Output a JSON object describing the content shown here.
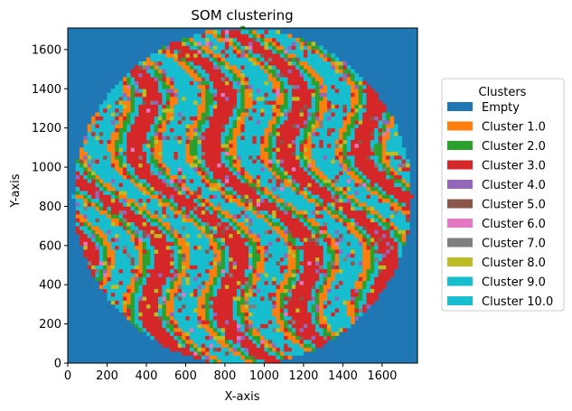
{
  "chart_data": {
    "type": "heatmap",
    "title": "SOM clustering",
    "xlabel": "X-axis",
    "ylabel": "Y-axis",
    "xlim": [
      0,
      1780
    ],
    "ylim": [
      0,
      1710
    ],
    "x_ticks": [
      0,
      200,
      400,
      600,
      800,
      1000,
      1200,
      1400,
      1600
    ],
    "y_ticks": [
      0,
      200,
      400,
      600,
      800,
      1000,
      1200,
      1400,
      1600
    ],
    "grid": false,
    "legend_placement": "right",
    "legend_title": "Clusters",
    "background_cluster": "Empty",
    "disk": {
      "center": [
        890,
        850
      ],
      "radius": 860
    },
    "series": [
      {
        "name": "Empty",
        "color": "#1f77b4"
      },
      {
        "name": "Cluster 1.0",
        "color": "#ff7f0e"
      },
      {
        "name": "Cluster 2.0",
        "color": "#2ca02c"
      },
      {
        "name": "Cluster 3.0",
        "color": "#d62728"
      },
      {
        "name": "Cluster 4.0",
        "color": "#9467bd"
      },
      {
        "name": "Cluster 5.0",
        "color": "#8c564b"
      },
      {
        "name": "Cluster 6.0",
        "color": "#e377c2"
      },
      {
        "name": "Cluster 7.0",
        "color": "#7f7f7f"
      },
      {
        "name": "Cluster 8.0",
        "color": "#bcbd22"
      },
      {
        "name": "Cluster 9.0",
        "color": "#17becf"
      },
      {
        "name": "Cluster 10.0",
        "color": "#17becf"
      }
    ]
  }
}
